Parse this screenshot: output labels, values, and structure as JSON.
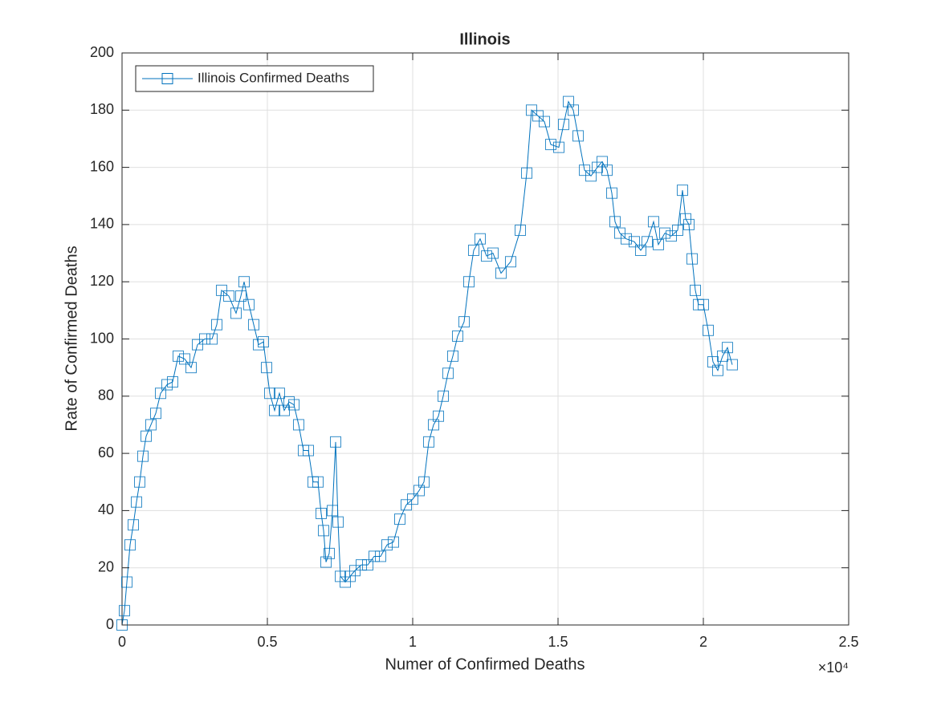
{
  "chart_data": {
    "type": "line",
    "title": "Illinois",
    "xlabel": "Numer of Confirmed Deaths",
    "ylabel": "Rate of Confirmed Deaths",
    "x_exponent_label": "×10⁴",
    "xlim": [
      0,
      25000
    ],
    "ylim": [
      0,
      200
    ],
    "xticks": [
      0,
      {
        "value": 5000,
        "label": "0.5"
      },
      {
        "value": 10000,
        "label": "1"
      },
      {
        "value": 15000,
        "label": "1.5"
      },
      {
        "value": 20000,
        "label": "2"
      },
      {
        "value": 25000,
        "label": "2.5"
      }
    ],
    "yticks": [
      0,
      20,
      40,
      60,
      80,
      100,
      120,
      140,
      160,
      180,
      200
    ],
    "grid": true,
    "legend": "northwest",
    "x": [
      0,
      83,
      166,
      276,
      387,
      497,
      608,
      718,
      829,
      994,
      1160,
      1326,
      1547,
      1740,
      1934,
      2155,
      2376,
      2597,
      2845,
      3094,
      3260,
      3425,
      3674,
      3923,
      4088,
      4199,
      4365,
      4530,
      4696,
      4862,
      4972,
      5083,
      5249,
      5414,
      5580,
      5746,
      5912,
      6077,
      6243,
      6409,
      6575,
      6740,
      6851,
      6934,
      7017,
      7127,
      7238,
      7348,
      7431,
      7514,
      7680,
      7845,
      8011,
      8232,
      8453,
      8674,
      8895,
      9116,
      9337,
      9558,
      9779,
      10000,
      10221,
      10387,
      10552,
      10718,
      10884,
      11050,
      11215,
      11381,
      11547,
      11768,
      11934,
      12099,
      12320,
      12541,
      12762,
      13039,
      13370,
      13702,
      13923,
      14088,
      14309,
      14530,
      14751,
      15028,
      15193,
      15359,
      15525,
      15691,
      15912,
      16133,
      16354,
      16519,
      16685,
      16851,
      16961,
      17127,
      17348,
      17624,
      17845,
      18066,
      18287,
      18453,
      18674,
      18895,
      19116,
      19282,
      19392,
      19503,
      19613,
      19724,
      19834,
      20000,
      20166,
      20331,
      20497,
      20663,
      20829,
      20994
    ],
    "series": [
      {
        "name": "Illinois Confirmed Deaths",
        "color": "#0072bd",
        "values": [
          0,
          5,
          15,
          28,
          35,
          43,
          50,
          59,
          66,
          70,
          74,
          81,
          84,
          85,
          94,
          93,
          90,
          98,
          100,
          100,
          105,
          117,
          115,
          109,
          115,
          120,
          112,
          105,
          98,
          99,
          90,
          81,
          75,
          81,
          75,
          78,
          77,
          70,
          61,
          61,
          50,
          50,
          39,
          33,
          22,
          25,
          40,
          64,
          36,
          17,
          15,
          17,
          19,
          21,
          21,
          24,
          24,
          28,
          29,
          37,
          42,
          44,
          47,
          50,
          64,
          70,
          73,
          80,
          88,
          94,
          101,
          106,
          120,
          131,
          135,
          129,
          130,
          123,
          127,
          138,
          158,
          180,
          178,
          176,
          168,
          167,
          175,
          183,
          180,
          171,
          159,
          157,
          160,
          162,
          159,
          151,
          141,
          137,
          135,
          134,
          131,
          134,
          141,
          133,
          137,
          136,
          138,
          152,
          142,
          140,
          128,
          117,
          112,
          112,
          103,
          92,
          89,
          94,
          97,
          91
        ]
      }
    ]
  }
}
